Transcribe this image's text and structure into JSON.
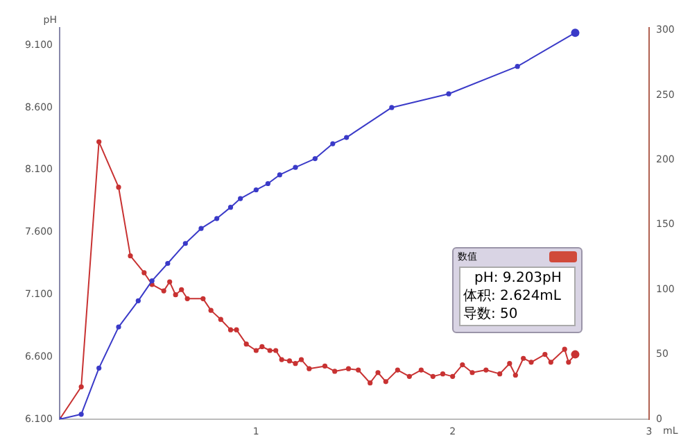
{
  "chart_data": {
    "type": "line",
    "xlabel": "mL",
    "ylabel": "pH",
    "xlim": [
      0,
      3
    ],
    "xticks": [
      1,
      2,
      3
    ],
    "ylim": [
      6.1,
      9.24
    ],
    "yticks": [
      {
        "value": 6.1,
        "label": "6.100"
      },
      {
        "value": 6.6,
        "label": "6.600"
      },
      {
        "value": 7.1,
        "label": "7.100"
      },
      {
        "value": 7.6,
        "label": "7.600"
      },
      {
        "value": 8.1,
        "label": "8.100"
      },
      {
        "value": 8.6,
        "label": "8.600"
      },
      {
        "value": 9.1,
        "label": "9.100"
      }
    ],
    "y2lim": [
      0,
      302
    ],
    "y2ticks": [
      0,
      50,
      100,
      150,
      200,
      250,
      300
    ],
    "marker": "circle",
    "grid": false,
    "legend": false,
    "annotations": [
      "数值",
      "pH: 9.203pH",
      "体积: 2.624mL",
      "导数: 50"
    ],
    "series": [
      {
        "color": "#3a3ac8",
        "x": [
          0,
          0.11,
          0.2,
          0.3,
          0.4,
          0.47,
          0.55,
          0.64,
          0.72,
          0.8,
          0.87,
          0.92,
          1.0,
          1.06,
          1.12,
          1.2,
          1.3,
          1.39,
          1.46,
          1.69,
          1.98,
          2.33,
          2.624
        ],
        "values": [
          6.1,
          6.14,
          6.51,
          6.84,
          7.05,
          7.21,
          7.35,
          7.51,
          7.63,
          7.71,
          7.8,
          7.87,
          7.94,
          7.99,
          8.06,
          8.12,
          8.19,
          8.31,
          8.36,
          8.6,
          8.71,
          8.93,
          9.2
        ]
      },
      {
        "color": "#c83232",
        "axis": "y2",
        "x": [
          0,
          0.11,
          0.2,
          0.3,
          0.36,
          0.43,
          0.47,
          0.53,
          0.56,
          0.59,
          0.62,
          0.65,
          0.73,
          0.77,
          0.82,
          0.87,
          0.9,
          0.95,
          1.0,
          1.03,
          1.07,
          1.1,
          1.13,
          1.17,
          1.2,
          1.23,
          1.27,
          1.35,
          1.4,
          1.47,
          1.52,
          1.58,
          1.62,
          1.66,
          1.72,
          1.78,
          1.84,
          1.9,
          1.95,
          2.0,
          2.05,
          2.1,
          2.17,
          2.24,
          2.29,
          2.32,
          2.36,
          2.4,
          2.47,
          2.5,
          2.57,
          2.59,
          2.624
        ],
        "values": [
          0,
          25,
          214,
          179,
          126,
          113,
          104,
          99,
          106,
          96,
          100,
          93,
          93,
          84,
          77,
          69,
          69,
          58,
          53,
          56,
          53,
          53,
          46,
          45,
          43,
          46,
          39,
          41,
          37,
          39,
          38,
          28,
          36,
          29,
          38,
          33,
          38,
          33,
          35,
          33,
          42,
          36,
          38,
          35,
          43,
          34,
          47,
          44,
          50,
          44,
          54,
          44,
          50
        ]
      }
    ]
  }
}
